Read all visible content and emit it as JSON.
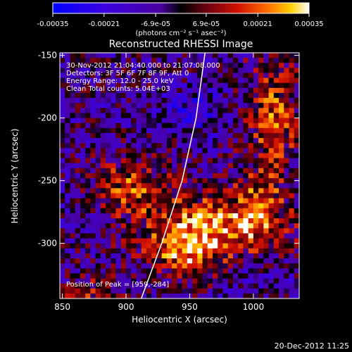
{
  "chart_data": {
    "type": "heatmap",
    "title": "Reconstructed RHESSI Image",
    "xlabel": "Heliocentric X (arcsec)",
    "ylabel": "Heliocentric Y (arcsec)",
    "xlim": [
      848,
      1036
    ],
    "ylim": [
      -344,
      -148
    ],
    "x_ticks": [
      850,
      900,
      950,
      1000
    ],
    "y_ticks": [
      -150,
      -200,
      -250,
      -300
    ],
    "colorbar": {
      "range": [
        -0.00035,
        0.00035
      ],
      "ticks": [
        -0.00035,
        -0.00021,
        -6.9e-05,
        6.9e-05,
        0.00021,
        0.00035
      ],
      "tick_labels": [
        "-0.00035",
        "-0.00021",
        "-6.9e-05",
        "6.9e-05",
        "0.00021",
        "0.00035"
      ],
      "units_text": "(photons cm⁻² s⁻¹ asec⁻²)"
    },
    "annotations": [
      "30-Nov-2012 21:04:40.000 to 21:07:08.000",
      "Detectors: 3F 5F 6F 7F 8F 9F, Att 0",
      "Energy Range: 12.0 - 25.0 keV",
      "Clean     Total counts: 5.04E+03"
    ],
    "peak_label": "Position of Peak = [959,-284]",
    "peak": [
      959,
      -284
    ],
    "limb": [
      [
        962,
        -148
      ],
      [
        955,
        -200
      ],
      [
        944,
        -250
      ],
      [
        928,
        -300
      ],
      [
        912,
        -344
      ]
    ],
    "grid": false
  },
  "footer": {
    "timestamp": "20-Dec-2012 11:25"
  }
}
